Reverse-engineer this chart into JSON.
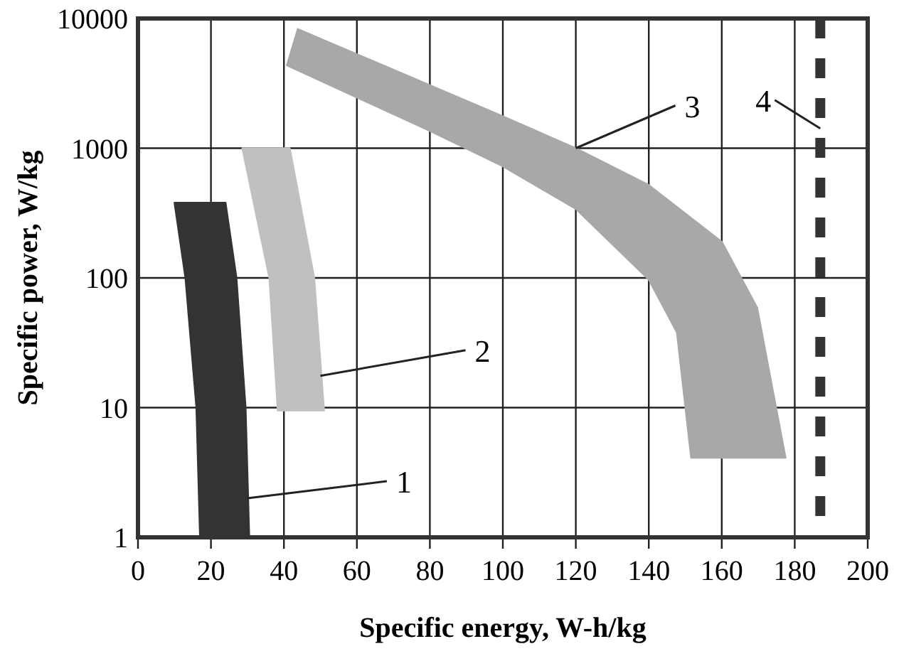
{
  "chart_data": {
    "type": "area",
    "xlabel": "Specific energy, W-h/kg",
    "ylabel": "Specific power, W/kg",
    "xlim": [
      0,
      200
    ],
    "ylim": [
      1,
      10000
    ],
    "xticks": [
      0,
      20,
      40,
      60,
      80,
      100,
      120,
      140,
      160,
      180,
      200
    ],
    "yticks": [
      1,
      10,
      100,
      1000,
      10000
    ],
    "log": "y",
    "grid": true,
    "series": [
      {
        "color": "#333333",
        "x": [
          10,
          13,
          16,
          17,
          30.5,
          29.5,
          27,
          24
        ],
        "values": [
          380,
          100,
          10,
          1,
          1,
          10,
          100,
          380
        ]
      },
      {
        "color": "#c0c0c0",
        "x": [
          28.6,
          36,
          38.3,
          51,
          48.3,
          41.6
        ],
        "values": [
          1000,
          100,
          9.5,
          9.5,
          100,
          1000
        ]
      },
      {
        "color": "#a8a8a8",
        "x": [
          43.8,
          100,
          120,
          140,
          160,
          169.7,
          177.5,
          151.6,
          147.7,
          140,
          120,
          100,
          80,
          40.8
        ],
        "values": [
          8300,
          1760,
          1000,
          520,
          190,
          59,
          4.1,
          4.1,
          38,
          97,
          340,
          725,
          1360,
          4350
        ]
      }
    ],
    "ref_lines": [
      {
        "axis": "x",
        "value": 187,
        "color": "#333333",
        "line_style": "dashed"
      }
    ],
    "annotations": [
      {
        "text": "1",
        "x": 30,
        "y": 2
      },
      {
        "text": "2",
        "x": 50,
        "y": 17.6
      },
      {
        "text": "3",
        "x": 120,
        "y": 1000
      },
      {
        "text": "4",
        "x": 187,
        "y": 1420
      }
    ]
  }
}
